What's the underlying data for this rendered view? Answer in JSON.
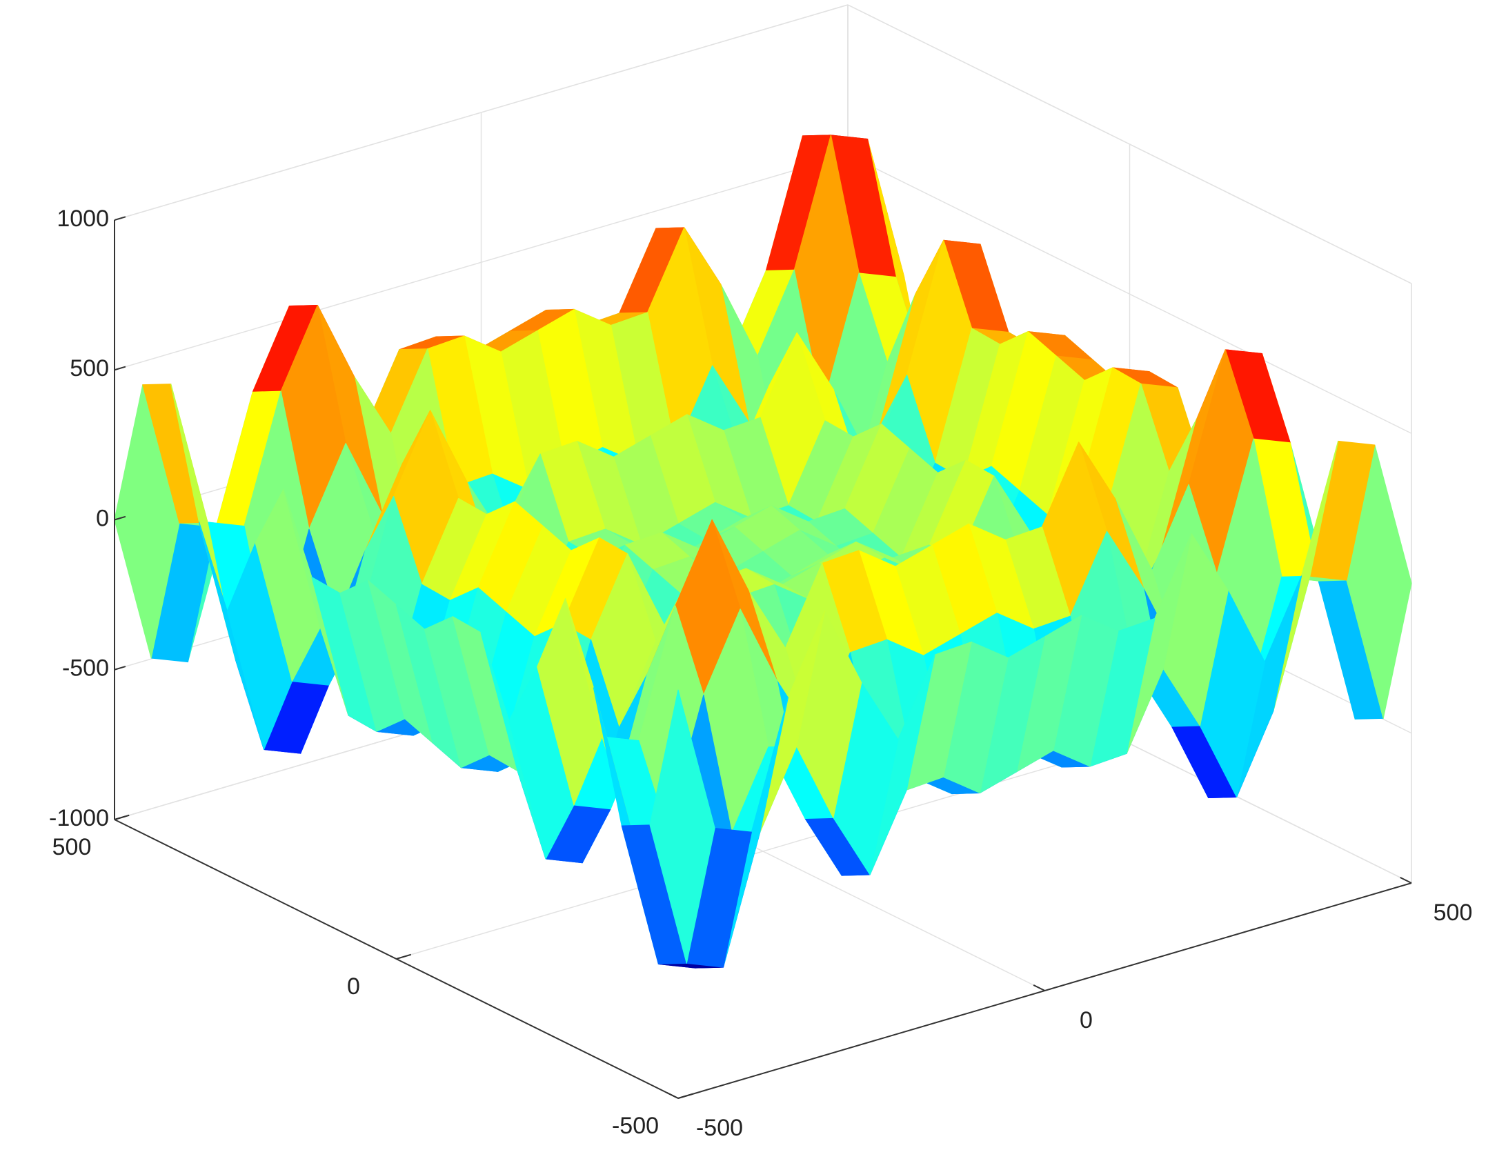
{
  "chart_data": {
    "type": "surface",
    "colormap": "jet",
    "grid": true,
    "x": [
      -500,
      -450,
      -400,
      -350,
      -300,
      -250,
      -200,
      -150,
      -100,
      -50,
      0,
      50,
      100,
      150,
      200,
      250,
      300,
      350,
      400,
      450,
      500
    ],
    "y": [
      -500,
      -450,
      -400,
      -350,
      -300,
      -250,
      -200,
      -150,
      -100,
      -50,
      0,
      50,
      100,
      150,
      200,
      250,
      300,
      350,
      400,
      450,
      500
    ],
    "z": [
      [
        362,
        -135,
        -184,
        230,
        481,
        207,
        -19,
        228,
        235,
        146,
        181,
        216,
        127,
        134,
        381,
        155,
        -119,
        132,
        546,
        497,
        0
      ],
      [
        -135,
        -632,
        -681,
        -267,
        -16,
        -290,
        -516,
        -269,
        -262,
        -351,
        -316,
        -281,
        -370,
        -363,
        -116,
        -342,
        -616,
        -365,
        49,
        0,
        -497
      ],
      [
        -184,
        -681,
        -730,
        -316,
        -65,
        -339,
        -565,
        -318,
        -311,
        -400,
        -365,
        -330,
        -419,
        -412,
        -165,
        -391,
        -665,
        -414,
        0,
        -49,
        -546
      ],
      [
        230,
        -267,
        -316,
        98,
        349,
        75,
        -151,
        96,
        103,
        14,
        49,
        84,
        -5,
        2,
        249,
        23,
        -251,
        0,
        414,
        365,
        -132
      ],
      [
        481,
        -16,
        -65,
        349,
        600,
        326,
        100,
        347,
        354,
        265,
        300,
        335,
        246,
        253,
        500,
        274,
        0,
        251,
        665,
        616,
        119
      ],
      [
        207,
        -290,
        -339,
        75,
        326,
        52,
        -174,
        73,
        80,
        -9,
        26,
        61,
        -28,
        -21,
        226,
        0,
        -274,
        -23,
        391,
        342,
        -155
      ],
      [
        -19,
        -516,
        -565,
        -151,
        100,
        -174,
        -400,
        -153,
        -146,
        -235,
        -200,
        -165,
        -254,
        -247,
        0,
        -226,
        -500,
        -249,
        165,
        116,
        -381
      ],
      [
        228,
        -269,
        -318,
        96,
        347,
        73,
        -153,
        94,
        101,
        12,
        47,
        82,
        -7,
        0,
        247,
        21,
        -253,
        -2,
        412,
        363,
        -134
      ],
      [
        235,
        -262,
        -311,
        103,
        354,
        80,
        -146,
        101,
        108,
        19,
        54,
        89,
        0,
        7,
        254,
        28,
        -246,
        5,
        419,
        370,
        -127
      ],
      [
        146,
        -351,
        -400,
        14,
        265,
        -9,
        -235,
        12,
        19,
        -70,
        -35,
        0,
        -89,
        -82,
        165,
        -61,
        -335,
        -84,
        330,
        281,
        -216
      ],
      [
        181,
        -316,
        -365,
        49,
        300,
        26,
        -200,
        47,
        54,
        -35,
        0,
        35,
        -54,
        -47,
        200,
        -26,
        -300,
        -49,
        365,
        316,
        -181
      ],
      [
        216,
        -281,
        -330,
        84,
        335,
        61,
        -165,
        82,
        89,
        0,
        35,
        70,
        -19,
        -12,
        235,
        9,
        -265,
        -14,
        400,
        351,
        -146
      ],
      [
        127,
        -370,
        -419,
        -5,
        246,
        -28,
        -254,
        -7,
        0,
        -89,
        -54,
        -19,
        -108,
        -101,
        146,
        -80,
        -354,
        -103,
        311,
        262,
        -235
      ],
      [
        134,
        -363,
        -412,
        2,
        253,
        -21,
        -247,
        0,
        7,
        -82,
        -47,
        -12,
        -101,
        -94,
        153,
        -73,
        -347,
        -96,
        318,
        269,
        -228
      ],
      [
        381,
        -116,
        -165,
        249,
        500,
        226,
        0,
        247,
        254,
        165,
        200,
        235,
        146,
        153,
        400,
        174,
        -100,
        151,
        565,
        516,
        19
      ],
      [
        155,
        -342,
        -391,
        23,
        274,
        0,
        -226,
        21,
        28,
        -61,
        -26,
        9,
        -80,
        -73,
        174,
        -52,
        -326,
        -75,
        339,
        290,
        -207
      ],
      [
        -119,
        -616,
        -665,
        -251,
        0,
        -274,
        -500,
        -253,
        -246,
        -335,
        -300,
        -265,
        -354,
        -347,
        -100,
        -326,
        -600,
        -349,
        65,
        16,
        -481
      ],
      [
        132,
        -365,
        -414,
        0,
        251,
        -23,
        -249,
        -2,
        5,
        -84,
        -49,
        -14,
        -103,
        -96,
        151,
        -75,
        -349,
        -98,
        316,
        267,
        -230
      ],
      [
        546,
        49,
        0,
        414,
        665,
        391,
        165,
        412,
        419,
        330,
        365,
        400,
        311,
        318,
        565,
        339,
        65,
        316,
        730,
        681,
        184
      ],
      [
        497,
        0,
        -49,
        365,
        616,
        342,
        116,
        363,
        370,
        281,
        316,
        351,
        262,
        269,
        516,
        290,
        16,
        267,
        681,
        632,
        135
      ],
      [
        0,
        -497,
        -546,
        -132,
        119,
        -155,
        -381,
        -134,
        -127,
        -216,
        -181,
        -146,
        -235,
        -228,
        19,
        -207,
        -481,
        -230,
        184,
        135,
        -362
      ]
    ],
    "xlim": [
      -500,
      500
    ],
    "ylim": [
      -500,
      500
    ],
    "zlim": [
      -1000,
      1000
    ],
    "xticks": [
      -500,
      0,
      500
    ],
    "yticks": [
      -500,
      0,
      500
    ],
    "zticks": [
      -1000,
      -500,
      0,
      500,
      1000
    ]
  }
}
